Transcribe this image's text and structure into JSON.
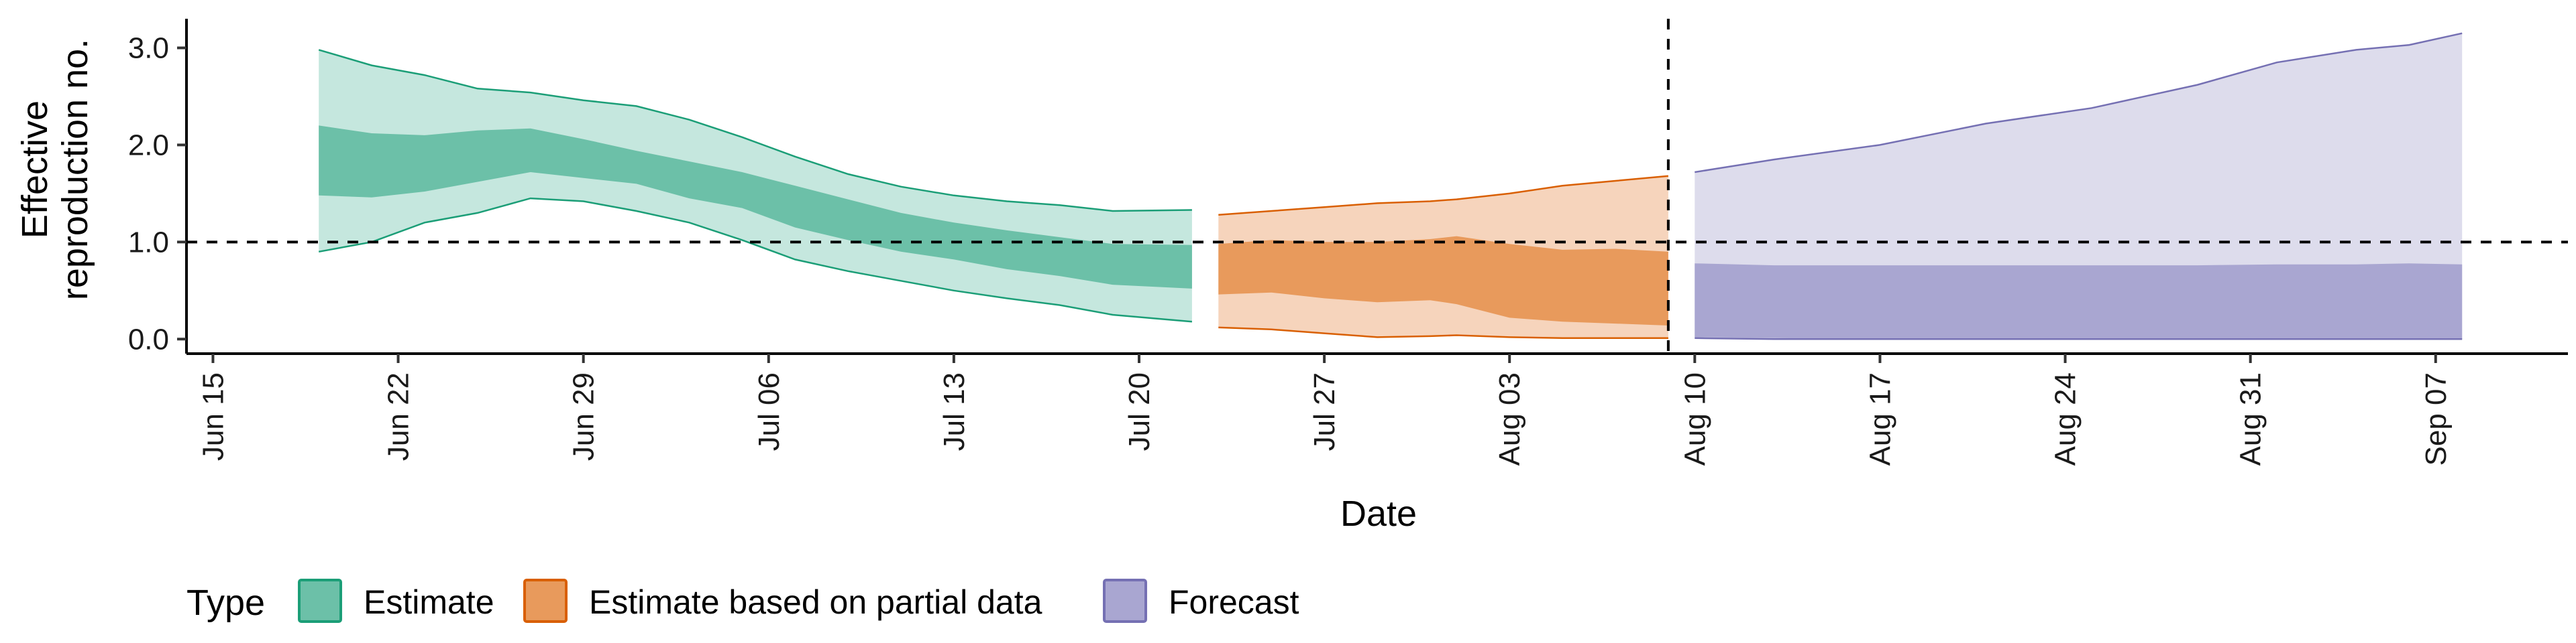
{
  "chart_data": {
    "type": "area",
    "xlabel": "Date",
    "ylabel_lines": [
      "Effective",
      "reproduction no."
    ],
    "x_range": [
      "2020-06-14",
      "2020-09-12"
    ],
    "ylim": [
      -0.15,
      3.3
    ],
    "y_ticks": [
      {
        "value": 0.0,
        "label": "0.0"
      },
      {
        "value": 1.0,
        "label": "1.0"
      },
      {
        "value": 2.0,
        "label": "2.0"
      },
      {
        "value": 3.0,
        "label": "3.0"
      }
    ],
    "x_ticks": [
      {
        "date": "2020-06-15",
        "label": "Jun 15"
      },
      {
        "date": "2020-06-22",
        "label": "Jun 22"
      },
      {
        "date": "2020-06-29",
        "label": "Jun 29"
      },
      {
        "date": "2020-07-06",
        "label": "Jul 06"
      },
      {
        "date": "2020-07-13",
        "label": "Jul 13"
      },
      {
        "date": "2020-07-20",
        "label": "Jul 20"
      },
      {
        "date": "2020-07-27",
        "label": "Jul 27"
      },
      {
        "date": "2020-08-03",
        "label": "Aug 03"
      },
      {
        "date": "2020-08-10",
        "label": "Aug 10"
      },
      {
        "date": "2020-08-17",
        "label": "Aug 17"
      },
      {
        "date": "2020-08-24",
        "label": "Aug 24"
      },
      {
        "date": "2020-08-31",
        "label": "Aug 31"
      },
      {
        "date": "2020-09-07",
        "label": "Sep 07"
      }
    ],
    "reference_lines": [
      {
        "axis": "y",
        "value": 1.0,
        "style": "dashed"
      },
      {
        "axis": "x",
        "date": "2020-08-09",
        "style": "dashed"
      }
    ],
    "legend": {
      "title": "Type",
      "position": "bottom-left",
      "items": [
        {
          "label": "Estimate",
          "fill": "#6cc0a8",
          "stroke": "#1b9e77"
        },
        {
          "label": "Estimate based on partial data",
          "fill": "#e89a5c",
          "stroke": "#d95f02"
        },
        {
          "label": "Forecast",
          "fill": "#a9a6d1",
          "stroke": "#7570b3"
        }
      ]
    },
    "series": [
      {
        "name": "Estimate",
        "color": "#1b9e77",
        "outer_fill": "#c5e7de",
        "inner_fill": "#6cc0a8",
        "points": [
          {
            "date": "2020-06-19",
            "lo90": 0.9,
            "hi90": 2.98,
            "lo50": 1.48,
            "hi50": 2.2
          },
          {
            "date": "2020-06-21",
            "lo90": 1.0,
            "hi90": 2.82,
            "lo50": 1.46,
            "hi50": 2.12
          },
          {
            "date": "2020-06-23",
            "lo90": 1.2,
            "hi90": 2.72,
            "lo50": 1.52,
            "hi50": 2.1
          },
          {
            "date": "2020-06-25",
            "lo90": 1.3,
            "hi90": 2.58,
            "lo50": 1.62,
            "hi50": 2.15
          },
          {
            "date": "2020-06-27",
            "lo90": 1.45,
            "hi90": 2.54,
            "lo50": 1.72,
            "hi50": 2.17
          },
          {
            "date": "2020-06-29",
            "lo90": 1.42,
            "hi90": 2.46,
            "lo50": 1.66,
            "hi50": 2.06
          },
          {
            "date": "2020-07-01",
            "lo90": 1.32,
            "hi90": 2.4,
            "lo50": 1.6,
            "hi50": 1.94
          },
          {
            "date": "2020-07-03",
            "lo90": 1.2,
            "hi90": 2.26,
            "lo50": 1.45,
            "hi50": 1.83
          },
          {
            "date": "2020-07-05",
            "lo90": 1.02,
            "hi90": 2.08,
            "lo50": 1.35,
            "hi50": 1.72
          },
          {
            "date": "2020-07-07",
            "lo90": 0.82,
            "hi90": 1.88,
            "lo50": 1.15,
            "hi50": 1.58
          },
          {
            "date": "2020-07-09",
            "lo90": 0.7,
            "hi90": 1.7,
            "lo50": 1.02,
            "hi50": 1.44
          },
          {
            "date": "2020-07-11",
            "lo90": 0.6,
            "hi90": 1.57,
            "lo50": 0.9,
            "hi50": 1.3
          },
          {
            "date": "2020-07-13",
            "lo90": 0.5,
            "hi90": 1.48,
            "lo50": 0.82,
            "hi50": 1.2
          },
          {
            "date": "2020-07-15",
            "lo90": 0.42,
            "hi90": 1.42,
            "lo50": 0.72,
            "hi50": 1.12
          },
          {
            "date": "2020-07-17",
            "lo90": 0.35,
            "hi90": 1.38,
            "lo50": 0.65,
            "hi50": 1.05
          },
          {
            "date": "2020-07-19",
            "lo90": 0.25,
            "hi90": 1.32,
            "lo50": 0.56,
            "hi50": 0.98
          },
          {
            "date": "2020-07-22",
            "lo90": 0.18,
            "hi90": 1.33,
            "lo50": 0.52,
            "hi50": 0.97
          }
        ]
      },
      {
        "name": "Estimate based on partial data",
        "color": "#d95f02",
        "outer_fill": "#f6d4bc",
        "inner_fill": "#e89a5c",
        "points": [
          {
            "date": "2020-07-23",
            "lo90": 0.12,
            "hi90": 1.28,
            "lo50": 0.46,
            "hi50": 0.98
          },
          {
            "date": "2020-07-25",
            "lo90": 0.1,
            "hi90": 1.32,
            "lo50": 0.48,
            "hi50": 1.02
          },
          {
            "date": "2020-07-27",
            "lo90": 0.06,
            "hi90": 1.36,
            "lo50": 0.42,
            "hi50": 1.0
          },
          {
            "date": "2020-07-29",
            "lo90": 0.02,
            "hi90": 1.4,
            "lo50": 0.38,
            "hi50": 1.0
          },
          {
            "date": "2020-07-31",
            "lo90": 0.03,
            "hi90": 1.42,
            "lo50": 0.4,
            "hi50": 1.03
          },
          {
            "date": "2020-08-01",
            "lo90": 0.04,
            "hi90": 1.44,
            "lo50": 0.36,
            "hi50": 1.06
          },
          {
            "date": "2020-08-03",
            "lo90": 0.02,
            "hi90": 1.5,
            "lo50": 0.22,
            "hi50": 0.98
          },
          {
            "date": "2020-08-05",
            "lo90": 0.01,
            "hi90": 1.58,
            "lo50": 0.18,
            "hi50": 0.92
          },
          {
            "date": "2020-08-07",
            "lo90": 0.01,
            "hi90": 1.63,
            "lo50": 0.16,
            "hi50": 0.93
          },
          {
            "date": "2020-08-09",
            "lo90": 0.01,
            "hi90": 1.68,
            "lo50": 0.14,
            "hi50": 0.9
          }
        ]
      },
      {
        "name": "Forecast",
        "color": "#7570b3",
        "outer_fill": "#dddcec",
        "inner_fill": "#a9a6d1",
        "points": [
          {
            "date": "2020-08-10",
            "lo90": 0.01,
            "hi90": 1.72,
            "lo50": 0.02,
            "hi50": 0.78
          },
          {
            "date": "2020-08-13",
            "lo90": 0.0,
            "hi90": 1.85,
            "lo50": 0.01,
            "hi50": 0.76
          },
          {
            "date": "2020-08-17",
            "lo90": 0.0,
            "hi90": 2.0,
            "lo50": 0.0,
            "hi50": 0.76
          },
          {
            "date": "2020-08-21",
            "lo90": 0.0,
            "hi90": 2.22,
            "lo50": 0.0,
            "hi50": 0.76
          },
          {
            "date": "2020-08-25",
            "lo90": 0.0,
            "hi90": 2.38,
            "lo50": 0.0,
            "hi50": 0.76
          },
          {
            "date": "2020-08-29",
            "lo90": 0.0,
            "hi90": 2.62,
            "lo50": 0.0,
            "hi50": 0.76
          },
          {
            "date": "2020-09-01",
            "lo90": 0.0,
            "hi90": 2.85,
            "lo50": 0.0,
            "hi50": 0.77
          },
          {
            "date": "2020-09-04",
            "lo90": 0.0,
            "hi90": 2.98,
            "lo50": 0.0,
            "hi50": 0.77
          },
          {
            "date": "2020-09-06",
            "lo90": 0.0,
            "hi90": 3.03,
            "lo50": 0.0,
            "hi50": 0.78
          },
          {
            "date": "2020-09-08",
            "lo90": 0.0,
            "hi90": 3.15,
            "lo50": 0.0,
            "hi50": 0.77
          }
        ]
      }
    ]
  }
}
